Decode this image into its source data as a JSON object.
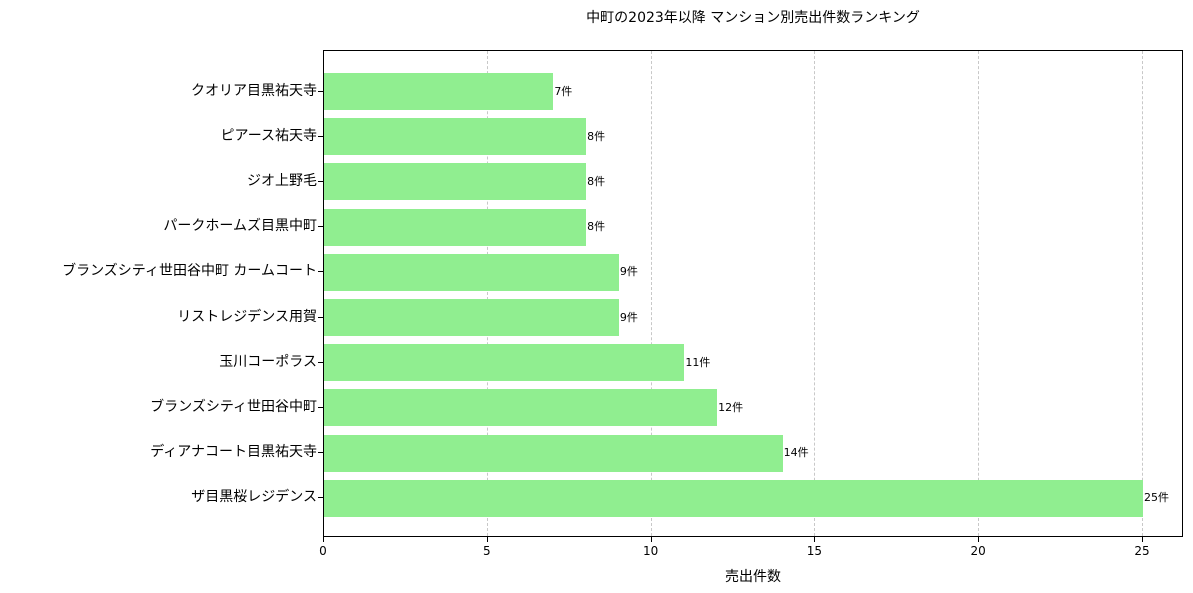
{
  "chart_data": {
    "type": "bar",
    "orientation": "horizontal",
    "title": "中町の2023年以降 マンション別売出件数ランキング",
    "xlabel": "売出件数",
    "ylabel": "",
    "xlim": [
      0,
      26.25
    ],
    "xticks": [
      0,
      5,
      10,
      15,
      20,
      25
    ],
    "grid": {
      "x": true,
      "style": "dashed"
    },
    "bar_color": "#90ee90",
    "value_suffix": "件",
    "categories": [
      "クオリア目黒祐天寺",
      "ピアース祐天寺",
      "ジオ上野毛",
      "パークホームズ目黒中町",
      "ブランズシティ世田谷中町 カームコート",
      "リストレジデンス用賀",
      "玉川コーポラス",
      "ブランズシティ世田谷中町",
      "ディアナコート目黒祐天寺",
      "ザ目黒桜レジデンス"
    ],
    "values": [
      7,
      8,
      8,
      8,
      9,
      9,
      11,
      12,
      14,
      25
    ],
    "data_labels": [
      "7件",
      "8件",
      "8件",
      "8件",
      "9件",
      "9件",
      "11件",
      "12件",
      "14件",
      "25件"
    ]
  }
}
